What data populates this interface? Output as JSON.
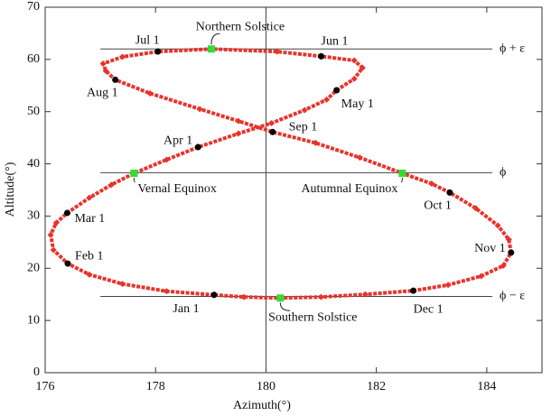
{
  "chart_data": {
    "type": "scatter",
    "x_label": "Azimuth(°)",
    "y_label": "Altitude(°)",
    "xlim": [
      176,
      185
    ],
    "ylim": [
      0,
      70
    ],
    "xticks": [
      176,
      178,
      180,
      182,
      184
    ],
    "yticks": [
      0,
      10,
      20,
      30,
      40,
      50,
      60,
      70
    ],
    "curve": {
      "color": "#e8332b",
      "x": [
        179.06,
        178.2,
        177.4,
        176.8,
        176.41,
        176.15,
        176.1,
        176.2,
        176.4,
        176.8,
        177.2,
        177.61,
        178.2,
        178.77,
        179.5,
        180.1,
        180.7,
        181.1,
        181.28,
        181.6,
        181.75,
        181.6,
        181.0,
        180.2,
        179.01,
        178.04,
        177.4,
        177.05,
        177.1,
        177.27,
        177.9,
        178.8,
        179.5,
        180.12,
        180.9,
        181.7,
        182.47,
        183.0,
        183.33,
        183.8,
        184.2,
        184.4,
        184.44,
        184.3,
        183.9,
        183.3,
        182.67,
        181.8,
        181.0,
        180.26,
        179.6,
        179.06
      ],
      "y": [
        14.9,
        15.6,
        17.0,
        18.8,
        20.9,
        23.5,
        26.4,
        28.7,
        30.6,
        33.5,
        36.0,
        38.2,
        40.8,
        43.2,
        45.8,
        47.8,
        50.3,
        52.3,
        54.1,
        56.3,
        58.4,
        59.8,
        60.6,
        61.5,
        62.0,
        61.5,
        60.5,
        59.2,
        57.8,
        56.1,
        53.5,
        50.5,
        48.2,
        46.1,
        44.0,
        41.2,
        38.2,
        36.2,
        34.5,
        31.5,
        28.2,
        25.5,
        23.0,
        20.5,
        18.5,
        16.8,
        15.7,
        15.0,
        14.5,
        14.3,
        14.5,
        14.9
      ]
    },
    "months": {
      "color": "#000000",
      "labels": [
        "Jan 1",
        "Feb 1",
        "Mar 1",
        "Apr 1",
        "May 1",
        "Jun 1",
        "Jul 1",
        "Aug 1",
        "Sep 1",
        "Oct 1",
        "Nov 1",
        "Dec 1"
      ],
      "x": [
        179.06,
        176.41,
        176.4,
        178.77,
        181.28,
        181.0,
        178.04,
        177.27,
        180.12,
        183.33,
        184.44,
        182.67
      ],
      "y": [
        14.9,
        20.9,
        30.6,
        43.2,
        54.1,
        60.6,
        61.5,
        56.1,
        46.1,
        34.5,
        23.0,
        15.7
      ]
    },
    "events": {
      "color": "#33dd33",
      "labels": [
        "Northern Solstice",
        "Vernal Equinox",
        "Autumnal Equinox",
        "Southern Solstice"
      ],
      "x": [
        179.01,
        177.61,
        182.47,
        180.26
      ],
      "y": [
        62.0,
        38.2,
        38.2,
        14.3
      ]
    },
    "hlines": [
      {
        "value": 62,
        "label": "ϕ + ε"
      },
      {
        "value": 38.3,
        "label": "ϕ"
      },
      {
        "value": 14.6,
        "label": "ϕ − ε"
      }
    ],
    "hline_xlim": [
      177,
      184.1
    ],
    "vline": 180
  }
}
